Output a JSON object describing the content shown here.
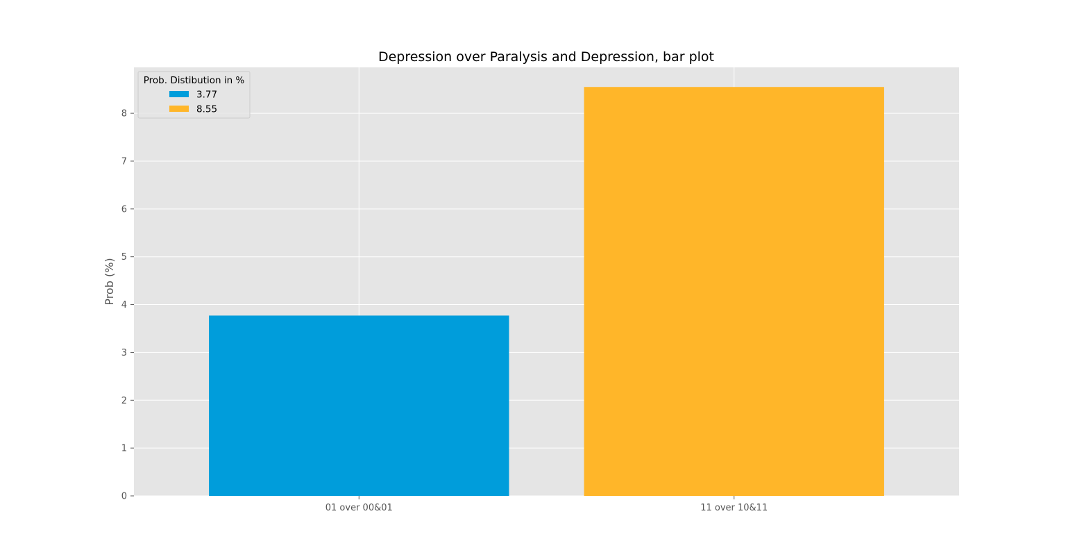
{
  "chart_data": {
    "type": "bar",
    "title": "Depression over Paralysis and Depression, bar plot",
    "xlabel": "",
    "ylabel": "Prob (%)",
    "categories": [
      "01 over 00&01",
      "11 over 10&11"
    ],
    "values": [
      3.77,
      8.55
    ],
    "bar_colors": [
      "#009ddb",
      "#ffb629"
    ],
    "ylim": [
      0,
      8.96
    ],
    "yticks": [
      0,
      1,
      2,
      3,
      4,
      5,
      6,
      7,
      8
    ],
    "grid": true,
    "legend": {
      "title": "Prob. Distibution in %",
      "placement": "top-left",
      "entries": [
        {
          "label": "3.77",
          "color": "#009ddb"
        },
        {
          "label": "8.55",
          "color": "#ffb629"
        }
      ]
    },
    "background_color": "#e5e5e5",
    "grid_color": "#ffffff"
  }
}
